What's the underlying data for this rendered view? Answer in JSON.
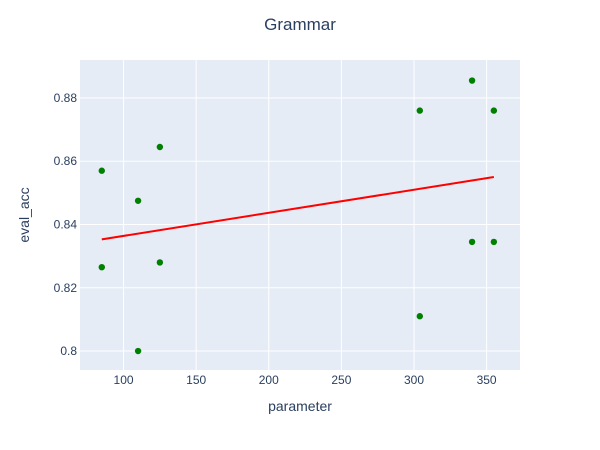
{
  "chart_data": {
    "type": "scatter",
    "title": "Grammar",
    "xlabel": "parameter",
    "ylabel": "eval_acc",
    "xlim": [
      70,
      373
    ],
    "ylim": [
      0.794,
      0.892
    ],
    "xticks": [
      100,
      150,
      200,
      250,
      300,
      350
    ],
    "yticks": [
      0.8,
      0.82,
      0.84,
      0.86,
      0.88
    ],
    "xtick_labels": [
      "100",
      "150",
      "200",
      "250",
      "300",
      "350"
    ],
    "ytick_labels": [
      "0.8",
      "0.82",
      "0.84",
      "0.86",
      "0.88"
    ],
    "grid": true,
    "plot_background": "#e5ecf6",
    "series": [
      {
        "kind": "markers",
        "color": "#008000",
        "points": [
          {
            "x": 85,
            "y": 0.857
          },
          {
            "x": 85,
            "y": 0.8265
          },
          {
            "x": 110,
            "y": 0.8475
          },
          {
            "x": 110,
            "y": 0.8
          },
          {
            "x": 125,
            "y": 0.8645
          },
          {
            "x": 125,
            "y": 0.828
          },
          {
            "x": 304,
            "y": 0.876
          },
          {
            "x": 304,
            "y": 0.811
          },
          {
            "x": 340,
            "y": 0.8855
          },
          {
            "x": 340,
            "y": 0.8345
          },
          {
            "x": 355,
            "y": 0.876
          },
          {
            "x": 355,
            "y": 0.8345
          }
        ]
      },
      {
        "kind": "line",
        "color": "#ff0000",
        "points": [
          {
            "x": 85,
            "y": 0.8353
          },
          {
            "x": 355,
            "y": 0.855
          }
        ]
      }
    ]
  }
}
